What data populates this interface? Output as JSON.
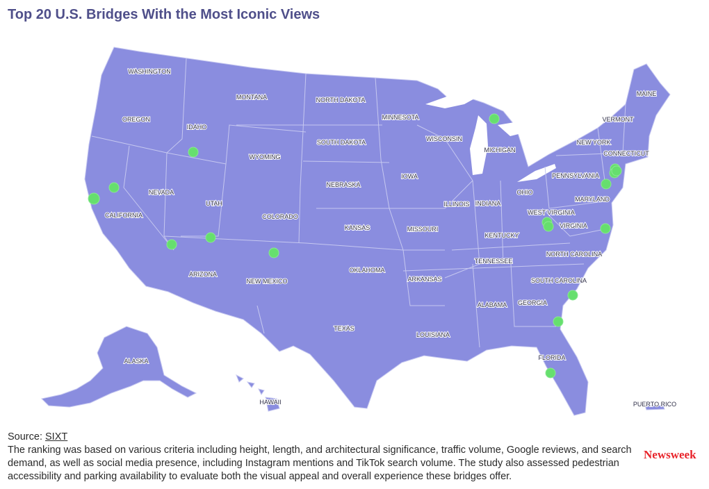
{
  "title": "Top 20 U.S. Bridges With the Most Iconic Views",
  "states": [
    {
      "name": "WASHINGTON"
    },
    {
      "name": "OREGON"
    },
    {
      "name": "CALIFORNIA"
    },
    {
      "name": "NEVADA"
    },
    {
      "name": "IDAHO"
    },
    {
      "name": "MONTANA"
    },
    {
      "name": "WYOMING"
    },
    {
      "name": "UTAH"
    },
    {
      "name": "ARIZONA"
    },
    {
      "name": "COLORADO"
    },
    {
      "name": "NEW MEXICO"
    },
    {
      "name": "NORTH DAKOTA"
    },
    {
      "name": "SOUTH DAKOTA"
    },
    {
      "name": "NEBRASKA"
    },
    {
      "name": "KANSAS"
    },
    {
      "name": "OKLAHOMA"
    },
    {
      "name": "TEXAS"
    },
    {
      "name": "MINNESOTA"
    },
    {
      "name": "IOWA"
    },
    {
      "name": "MISSOURI"
    },
    {
      "name": "ARKANSAS"
    },
    {
      "name": "LOUISIANA"
    },
    {
      "name": "WISCONSIN"
    },
    {
      "name": "ILLINOIS"
    },
    {
      "name": "MICHIGAN"
    },
    {
      "name": "INDIANA"
    },
    {
      "name": "OHIO"
    },
    {
      "name": "KENTUCKY"
    },
    {
      "name": "TENNESSEE"
    },
    {
      "name": "ALABAMA"
    },
    {
      "name": "GEORGIA"
    },
    {
      "name": "FLORIDA"
    },
    {
      "name": "SOUTH CAROLINA"
    },
    {
      "name": "NORTH CAROLINA"
    },
    {
      "name": "VIRGINIA"
    },
    {
      "name": "WEST VIRGINIA"
    },
    {
      "name": "PENNSYLVANIA"
    },
    {
      "name": "NEW YORK"
    },
    {
      "name": "MARYLAND"
    },
    {
      "name": "CONNECTICUT"
    },
    {
      "name": "VERMONT"
    },
    {
      "name": "MAINE"
    },
    {
      "name": "ALASKA"
    },
    {
      "name": "HAWAII"
    },
    {
      "name": "PUERTO RICO"
    }
  ],
  "bridge_markers": [
    {
      "state": "CALIFORNIA"
    },
    {
      "state": "CALIFORNIA"
    },
    {
      "state": "IDAHO"
    },
    {
      "state": "ARIZONA"
    },
    {
      "state": "ARIZONA"
    },
    {
      "state": "NEW MEXICO"
    },
    {
      "state": "MICHIGAN"
    },
    {
      "state": "WEST VIRGINIA"
    },
    {
      "state": "WEST VIRGINIA"
    },
    {
      "state": "NEW YORK"
    },
    {
      "state": "NEW YORK"
    },
    {
      "state": "NEW YORK"
    },
    {
      "state": "NEW JERSEY"
    },
    {
      "state": "VIRGINIA"
    },
    {
      "state": "SOUTH CAROLINA"
    },
    {
      "state": "GEORGIA"
    },
    {
      "state": "FLORIDA"
    }
  ],
  "colors": {
    "land": "#8a8ddf",
    "borders": "#c6c8f0",
    "marker": "#66df6e",
    "brand": "#e8232a"
  },
  "footer": {
    "source_label": "Source:",
    "source_link": "SIXT",
    "note": "The ranking was based on various criteria including height, length, and architectural significance, traffic volume, Google reviews, and search demand, as well as social media presence, including Instagram mentions and TikTok search volume. The study also assessed pedestrian accessibility and parking availability to evaluate both the visual appeal and overall experience these bridges offer."
  },
  "brand": "Newsweek"
}
